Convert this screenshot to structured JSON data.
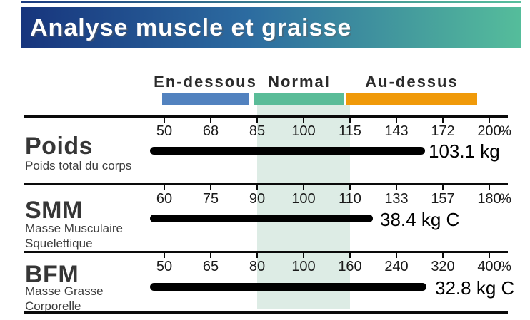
{
  "header": {
    "title": "Analyse muscle et graisse"
  },
  "legend": {
    "items": [
      {
        "label": "En-dessous",
        "color": "#5282bf"
      },
      {
        "label": "Normal",
        "color": "#5abc98"
      },
      {
        "label": "Au-dessus",
        "color": "#f09a0a"
      }
    ]
  },
  "colors": {
    "header_gradient_left": "#17357d",
    "header_gradient_right": "#55bd9b",
    "below_bar": "#5282bf",
    "normal_bar": "#5abc98",
    "above_bar": "#f09a0a",
    "normal_band": "#ddece5",
    "value_bar": "#000000"
  },
  "rows": [
    {
      "name": "Poids",
      "description": "Poids total du corps",
      "ticks": [
        "50",
        "68",
        "85",
        "100",
        "115",
        "143",
        "172",
        "200"
      ],
      "unit": "%",
      "value": "103.1 kg"
    },
    {
      "name": "SMM",
      "description": "Masse Musculaire Squelettique",
      "ticks": [
        "60",
        "75",
        "90",
        "100",
        "110",
        "133",
        "157",
        "180"
      ],
      "unit": "%",
      "value": "38.4 kg C"
    },
    {
      "name": "BFM",
      "description": "Masse Grasse Corporelle",
      "ticks": [
        "50",
        "65",
        "80",
        "100",
        "160",
        "240",
        "320",
        "400"
      ],
      "unit": "%",
      "value": "32.8 kg C"
    }
  ],
  "chart_data": {
    "type": "bar",
    "orientation": "horizontal",
    "title": "Analyse muscle et graisse",
    "legend": [
      "En-dessous",
      "Normal",
      "Au-dessus"
    ],
    "legend_position": "top",
    "unit": "%",
    "rows": [
      {
        "label": "Poids",
        "sublabel": "Poids total du corps",
        "scale_percent": [
          50,
          68,
          85,
          100,
          115,
          143,
          172,
          200
        ],
        "normal_range_percent": [
          85,
          115
        ],
        "value": 103.1,
        "value_unit": "kg",
        "value_label": "103.1 kg",
        "bar_reaches_percent": 160
      },
      {
        "label": "SMM",
        "sublabel": "Masse Musculaire Squelettique",
        "scale_percent": [
          60,
          75,
          90,
          100,
          110,
          133,
          157,
          180
        ],
        "normal_range_percent": [
          90,
          110
        ],
        "value": 38.4,
        "value_unit": "kg",
        "value_label": "38.4 kg C",
        "bar_reaches_percent": 120
      },
      {
        "label": "BFM",
        "sublabel": "Masse Grasse Corporelle",
        "scale_percent": [
          50,
          65,
          80,
          100,
          160,
          240,
          320,
          400
        ],
        "normal_range_percent": [
          80,
          160
        ],
        "value": 32.8,
        "value_unit": "kg",
        "value_label": "32.8 kg C",
        "bar_reaches_percent": 290
      }
    ]
  }
}
